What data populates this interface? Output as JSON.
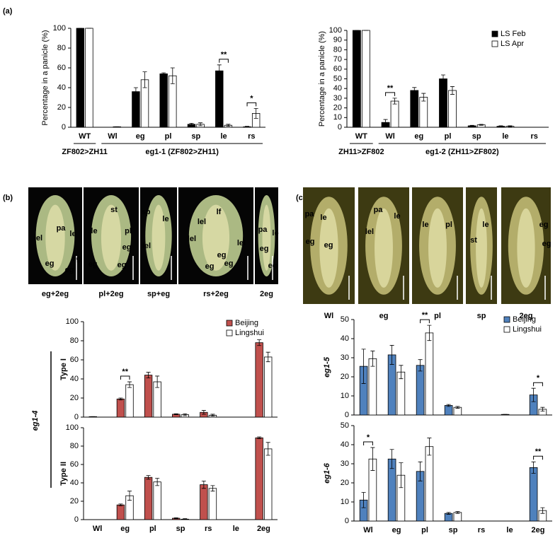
{
  "figure": {
    "panel_labels": [
      "(a)",
      "(b)",
      "(c)"
    ]
  },
  "photo_panels": [
    {
      "images": [
        {
          "caption": "eg+2eg",
          "labels": [
            "lel",
            "pa",
            "le",
            "eg",
            "eg",
            "eg"
          ]
        },
        {
          "caption": "pl+2eg",
          "labels": [
            "st",
            "le",
            "pl",
            "eg",
            "eg",
            "eg"
          ]
        },
        {
          "caption": "sp+eg",
          "labels": [
            "sp",
            "le",
            "lel"
          ]
        },
        {
          "caption": "rs+2eg",
          "labels": [
            "lf",
            "lel",
            "lel",
            "lel",
            "eg",
            "eg",
            "eg"
          ]
        },
        {
          "caption": "2eg",
          "labels": [
            "pa",
            "le",
            "eg",
            "eg"
          ]
        }
      ]
    },
    {
      "images": [
        {
          "caption": "Wl",
          "labels": [
            "pa",
            "le",
            "eg",
            "eg"
          ]
        },
        {
          "caption": "eg",
          "labels": [
            "pa",
            "le",
            "lel"
          ]
        },
        {
          "caption": "pl",
          "labels": [
            "le",
            "pl"
          ]
        },
        {
          "caption": "sp",
          "labels": [
            "le",
            "st"
          ]
        },
        {
          "caption": "2eg",
          "labels": [
            "eg",
            "eg"
          ]
        }
      ]
    }
  ],
  "chart_data": [
    {
      "type": "bar",
      "y_label": "Percentage in a panicle (%)",
      "show_categories": true,
      "categories": [
        "WT",
        "Wl",
        "eg",
        "pl",
        "sp",
        "le",
        "rs"
      ],
      "series": [
        {
          "name": "LS Feb",
          "color": "#000000",
          "values": [
            100,
            0,
            36,
            54,
            3,
            57,
            0.5
          ],
          "errors": [
            0,
            0,
            4,
            1,
            1,
            6,
            0.5
          ]
        },
        {
          "name": "LS Apr",
          "color": "#ffffff",
          "values": [
            100,
            0.5,
            48,
            52,
            3,
            2,
            14
          ],
          "errors": [
            0,
            0,
            8,
            8,
            1.5,
            1,
            5
          ]
        }
      ],
      "ylim": [
        0,
        100
      ],
      "yticks": [
        0,
        20,
        40,
        60,
        80,
        100
      ],
      "legend": false,
      "annotations": [
        {
          "category": "le",
          "text": "**"
        },
        {
          "category": "rs",
          "text": "*"
        }
      ],
      "groups": [
        {
          "label": "ZF802>ZH11",
          "from": "WT",
          "to": "WT"
        },
        {
          "label": "eg1-1 (ZF802>ZH11)",
          "from": "Wl",
          "to": "rs"
        }
      ]
    },
    {
      "type": "bar",
      "y_label": "Percentage in a panicle (%)",
      "show_categories": true,
      "categories": [
        "WT",
        "Wl",
        "eg",
        "pl",
        "sp",
        "le",
        "rs"
      ],
      "series": [
        {
          "name": "LS Feb",
          "color": "#000000",
          "values": [
            100,
            5,
            38,
            50,
            1.5,
            1,
            0
          ],
          "errors": [
            0,
            3,
            3,
            4,
            0.5,
            0.5,
            0
          ]
        },
        {
          "name": "LS Apr",
          "color": "#ffffff",
          "values": [
            100,
            27,
            31,
            38,
            2.5,
            1,
            0
          ],
          "errors": [
            0,
            3,
            4,
            4,
            0.5,
            0.5,
            0
          ]
        }
      ],
      "ylim": [
        0,
        100
      ],
      "yticks": [
        0,
        10,
        20,
        30,
        40,
        50,
        60,
        70,
        80,
        90,
        100
      ],
      "legend": "upper right",
      "annotations": [
        {
          "category": "Wl",
          "text": "**"
        }
      ],
      "groups": [
        {
          "label": "ZH11>ZF802",
          "from": "WT",
          "to": "WT"
        },
        {
          "label": "eg1-2 (ZH11>ZF802)",
          "from": "Wl",
          "to": "rs"
        }
      ]
    },
    {
      "type": "bar",
      "side_label": "Type I",
      "outer_label": "eg1-4",
      "show_categories": false,
      "categories": [
        "Wl",
        "eg",
        "pl",
        "sp",
        "rs",
        "le",
        "2eg"
      ],
      "series": [
        {
          "name": "Beijing",
          "color": "#c0504d",
          "values": [
            0.5,
            19,
            44,
            3,
            5,
            0,
            78
          ],
          "errors": [
            0,
            1,
            3,
            0.5,
            2,
            0,
            3
          ]
        },
        {
          "name": "Lingshui",
          "color": "#ffffff",
          "values": [
            0,
            34,
            37,
            2.5,
            2,
            0,
            63
          ],
          "errors": [
            0,
            3,
            6,
            1,
            1,
            0,
            5
          ]
        }
      ],
      "ylim": [
        0,
        100
      ],
      "yticks": [
        0,
        20,
        40,
        60,
        80,
        100
      ],
      "legend": "upper right",
      "annotations": [
        {
          "category": "eg",
          "text": "**"
        }
      ]
    },
    {
      "type": "bar",
      "side_label": "Type II",
      "show_categories": true,
      "categories": [
        "Wl",
        "eg",
        "pl",
        "sp",
        "rs",
        "le",
        "2eg"
      ],
      "series": [
        {
          "name": "Beijing",
          "color": "#c0504d",
          "values": [
            0,
            16,
            46,
            1.5,
            38,
            0,
            89
          ],
          "errors": [
            0,
            1,
            2,
            0.5,
            4,
            0,
            1
          ]
        },
        {
          "name": "Lingshui",
          "color": "#ffffff",
          "values": [
            0,
            26,
            41,
            0.5,
            34,
            0,
            77
          ],
          "errors": [
            0,
            5,
            4,
            0.5,
            3,
            0,
            7
          ]
        }
      ],
      "ylim": [
        0,
        100
      ],
      "yticks": [
        0,
        20,
        40,
        60,
        80,
        100
      ],
      "legend": false,
      "annotations": []
    },
    {
      "type": "bar",
      "side_label": "eg1-5",
      "show_categories": false,
      "categories": [
        "Wl",
        "eg",
        "pl",
        "sp",
        "rs",
        "le",
        "2eg"
      ],
      "series": [
        {
          "name": "Beijing",
          "color": "#4f81bd",
          "values": [
            25.5,
            31.5,
            26,
            5,
            0,
            0.3,
            10.5
          ],
          "errors": [
            9,
            5,
            3,
            0.5,
            0,
            0,
            3.5
          ]
        },
        {
          "name": "Lingshui",
          "color": "#ffffff",
          "values": [
            29.5,
            22.5,
            43,
            4,
            0,
            0,
            3
          ],
          "errors": [
            4,
            3.5,
            4,
            0.5,
            0,
            0,
            1
          ]
        }
      ],
      "ylim": [
        0,
        50
      ],
      "yticks": [
        0,
        10,
        20,
        30,
        40,
        50
      ],
      "legend": "upper right",
      "annotations": [
        {
          "category": "pl",
          "text": "**"
        },
        {
          "category": "2eg",
          "text": "*"
        }
      ]
    },
    {
      "type": "bar",
      "side_label": "eg1-6",
      "show_categories": true,
      "categories": [
        "Wl",
        "eg",
        "pl",
        "sp",
        "rs",
        "le",
        "2eg"
      ],
      "series": [
        {
          "name": "Beijing",
          "color": "#4f81bd",
          "values": [
            11,
            32.5,
            26,
            4,
            0,
            0,
            28
          ],
          "errors": [
            4,
            5,
            5,
            0.5,
            0,
            0,
            3
          ]
        },
        {
          "name": "Lingshui",
          "color": "#ffffff",
          "values": [
            32.5,
            24,
            39,
            4.5,
            0,
            0,
            5.5
          ],
          "errors": [
            6,
            6.5,
            4.5,
            0.5,
            0,
            0,
            1.5
          ]
        }
      ],
      "ylim": [
        0,
        50
      ],
      "yticks": [
        0,
        10,
        20,
        30,
        40,
        50
      ],
      "legend": false,
      "annotations": [
        {
          "category": "Wl",
          "text": "*"
        },
        {
          "category": "2eg",
          "text": "**"
        }
      ]
    }
  ]
}
